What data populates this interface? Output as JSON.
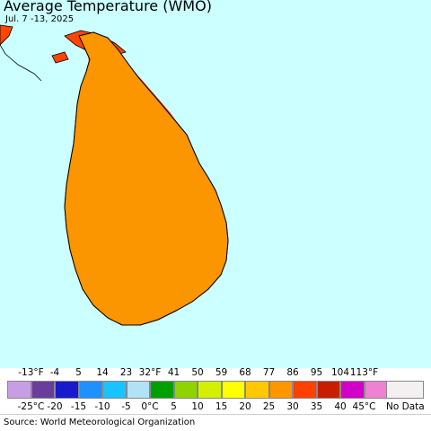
{
  "title": "Average Temperature (WMO)",
  "subtitle": "Jul. 7 -13, 2025",
  "colors": {
    "sea": "#ccffff",
    "land_base": "#fb9500",
    "hot": "#ff4500",
    "warm_light": "#ffc000",
    "warm_lighter": "#ffd000",
    "yellow": "#ffff00",
    "border": "#7a6a5a",
    "coast": "#000000"
  },
  "legend": {
    "fahrenheit_ticks": [
      "-13°F",
      "-4",
      "5",
      "14",
      "23",
      "32°F",
      "41",
      "50",
      "59",
      "68",
      "77",
      "86",
      "95",
      "104",
      "113°F"
    ],
    "celsius_ticks": [
      "-25°C",
      "-20",
      "-15",
      "-10",
      "-5",
      "0°C",
      "5",
      "10",
      "15",
      "20",
      "25",
      "30",
      "35",
      "40",
      "45°C"
    ],
    "swatches": [
      "#c79de6",
      "#6a3d9a",
      "#1a1acd",
      "#1e90ff",
      "#19c3ff",
      "#b0e2f8",
      "#00a000",
      "#8fd400",
      "#d4f000",
      "#ffff00",
      "#ffc800",
      "#ff9600",
      "#ff4000",
      "#c81e00",
      "#d200c8",
      "#f080d2"
    ],
    "no_data_label": "No Data",
    "no_data_color": "#f2f0f0"
  },
  "source": "Source: World Meteorological Organization"
}
